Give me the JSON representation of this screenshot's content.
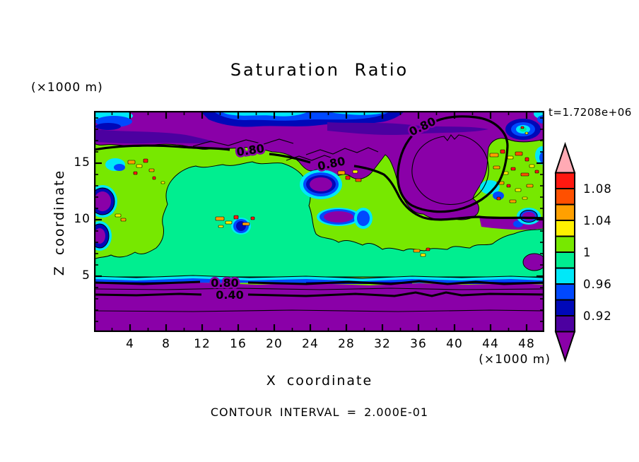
{
  "title": "Saturation Ratio",
  "time_label": "t=1.7208e+06",
  "axes": {
    "y": {
      "label": "Z coordinate",
      "unit": "(×1000 m)",
      "ticks": [
        "5",
        "10",
        "15"
      ]
    },
    "x": {
      "label": "X coordinate",
      "unit": "(×1000 m)",
      "ticks": [
        "4",
        "8",
        "12",
        "16",
        "20",
        "24",
        "28",
        "32",
        "36",
        "40",
        "44",
        "48"
      ]
    }
  },
  "footer_note": "CONTOUR INTERVAL = 2.000E-01",
  "colorbar": {
    "arrow_top_color": "#FFAAB4",
    "arrow_bottom_color": "#8A00A8",
    "segment_colors_top_to_bottom": [
      "#FF1810",
      "#FF5000",
      "#FFA000",
      "#FFF000",
      "#77E800",
      "#00EE90",
      "#00E8F8",
      "#0048FF",
      "#0008B8",
      "#4C00A0"
    ],
    "labels": [
      {
        "text": "1.08",
        "after_box": 1
      },
      {
        "text": "1.04",
        "after_box": 3
      },
      {
        "text": "1",
        "after_box": 5
      },
      {
        "text": "0.96",
        "after_box": 7
      },
      {
        "text": "0.92",
        "after_box": 9
      }
    ]
  },
  "map": {
    "contour_labels": [
      "0.80",
      "0.80",
      "0.80",
      "0.80",
      "0.40"
    ],
    "fill_colors": {
      "below_0.90": "#8A00A8",
      "0.90-0.92": "#4C00A0",
      "0.92-0.94": "#0008B8",
      "0.94-0.96": "#0048FF",
      "0.96-0.98": "#00E8F8",
      "0.98-1.00": "#00EE90",
      "1.00-1.02": "#77E800",
      "1.02-1.04": "#FFF000",
      "1.04-1.06": "#FFA000",
      "1.06-1.08": "#FF5000",
      "1.08-1.10": "#FF1810",
      "above_1.10": "#FFAAB4"
    }
  },
  "chart_data": {
    "type": "heatmap",
    "title": "Saturation Ratio",
    "xlabel": "X coordinate (×1000 m)",
    "ylabel": "Z coordinate (×1000 m)",
    "x_range": [
      0,
      50
    ],
    "z_range": [
      0,
      19.6
    ],
    "time_annotation": "t=1.7208e+06",
    "fill_levels": {
      "min": 0.9,
      "max": 1.1,
      "step": 0.02
    },
    "line_contour_interval": 0.2,
    "labeled_line_contours": [
      0.4,
      0.8
    ],
    "colorbar_tick_values": [
      1.08,
      1.04,
      1,
      0.96,
      0.92
    ],
    "x": [
      0,
      4,
      8,
      12,
      16,
      20,
      24,
      28,
      32,
      36,
      40,
      44,
      48
    ],
    "z": [
      19,
      17,
      15,
      13,
      11,
      9,
      7,
      5,
      4,
      3,
      2,
      1
    ],
    "values": [
      [
        0.88,
        0.92,
        0.96,
        0.9,
        0.86,
        0.9,
        0.94,
        0.9,
        0.86,
        0.84,
        0.88,
        0.9,
        0.96
      ],
      [
        0.8,
        0.78,
        0.82,
        0.8,
        0.76,
        0.72,
        0.78,
        0.92,
        0.8,
        0.72,
        0.7,
        0.76,
        0.94
      ],
      [
        1.0,
        0.96,
        1.0,
        1.01,
        1.01,
        1.0,
        0.88,
        0.96,
        0.8,
        0.74,
        0.8,
        0.96,
        1.04
      ],
      [
        0.92,
        1.0,
        1.01,
        1.0,
        1.0,
        1.01,
        1.0,
        0.94,
        0.9,
        0.82,
        0.78,
        0.94,
        1.01
      ],
      [
        0.86,
        0.99,
        1.0,
        1.01,
        1.0,
        1.0,
        0.98,
        0.94,
        1.0,
        0.9,
        0.84,
        0.9,
        1.0
      ],
      [
        0.99,
        1.0,
        1.01,
        1.0,
        1.0,
        0.98,
        1.0,
        1.0,
        0.98,
        1.0,
        0.94,
        1.0,
        1.0
      ],
      [
        1.0,
        1.01,
        1.0,
        1.0,
        1.01,
        1.0,
        1.0,
        0.98,
        1.0,
        1.0,
        1.0,
        1.01,
        0.99
      ],
      [
        0.97,
        1.0,
        1.0,
        0.98,
        1.0,
        1.0,
        0.96,
        0.92,
        0.96,
        1.0,
        0.98,
        1.0,
        0.96
      ],
      [
        0.8,
        0.8,
        0.8,
        0.8,
        0.8,
        0.8,
        0.8,
        0.8,
        0.8,
        0.8,
        0.8,
        0.8,
        0.8
      ],
      [
        0.55,
        0.55,
        0.55,
        0.55,
        0.55,
        0.55,
        0.55,
        0.55,
        0.55,
        0.55,
        0.55,
        0.55,
        0.55
      ],
      [
        0.35,
        0.35,
        0.35,
        0.35,
        0.35,
        0.35,
        0.35,
        0.35,
        0.35,
        0.35,
        0.35,
        0.35,
        0.35
      ],
      [
        0.15,
        0.15,
        0.15,
        0.15,
        0.15,
        0.15,
        0.15,
        0.15,
        0.15,
        0.15,
        0.15,
        0.15,
        0.15
      ]
    ],
    "legend_position": "right",
    "grid": false
  }
}
